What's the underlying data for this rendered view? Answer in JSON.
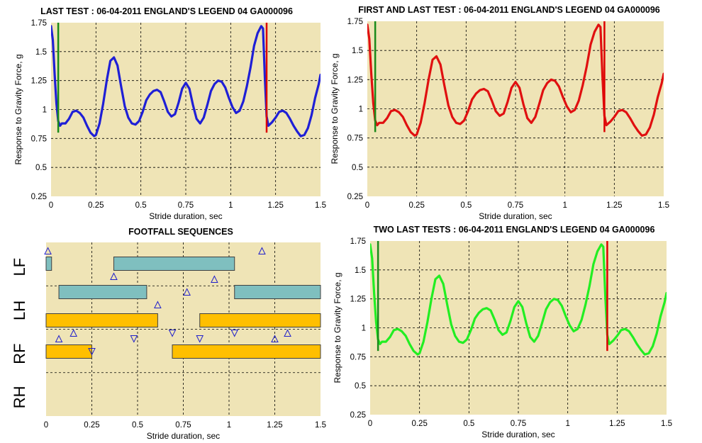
{
  "colors": {
    "plot_bg": "#efe4b6",
    "grid": "#000000"
  },
  "chart_data": [
    {
      "id": "p1",
      "type": "line",
      "title": "LAST TEST : 06-04-2011 ENGLAND'S LEGEND 04 GA000096",
      "xlabel": "Stride duration, sec",
      "ylabel": "Response to Gravity Force, g",
      "xlim": [
        0,
        1.5
      ],
      "ylim": [
        0.25,
        1.75
      ],
      "xticks": [
        0,
        0.25,
        0.5,
        0.75,
        1,
        1.25,
        1.5
      ],
      "xtick_labels": [
        "0",
        "0.25",
        "0.5",
        "0.75",
        "1",
        "1.25",
        "1.5"
      ],
      "yticks": [
        0.25,
        0.5,
        0.75,
        1,
        1.25,
        1.5,
        1.75
      ],
      "ytick_labels": [
        "0.25",
        "0.5",
        "0.75",
        "1",
        "1.25",
        "1.5",
        "1.75"
      ],
      "grid": true,
      "series": [
        {
          "color": "#1f1fd6",
          "x": [
            0,
            0.01,
            0.02,
            0.03,
            0.04,
            0.05,
            0.06,
            0.08,
            0.1,
            0.12,
            0.14,
            0.16,
            0.18,
            0.2,
            0.22,
            0.24,
            0.25,
            0.27,
            0.29,
            0.31,
            0.33,
            0.35,
            0.37,
            0.39,
            0.41,
            0.43,
            0.45,
            0.47,
            0.49,
            0.51,
            0.53,
            0.55,
            0.57,
            0.59,
            0.61,
            0.63,
            0.65,
            0.67,
            0.69,
            0.71,
            0.73,
            0.75,
            0.77,
            0.79,
            0.81,
            0.83,
            0.85,
            0.87,
            0.89,
            0.91,
            0.93,
            0.95,
            0.97,
            0.99,
            1.01,
            1.03,
            1.05,
            1.07,
            1.09,
            1.11,
            1.13,
            1.15,
            1.17,
            1.18,
            1.19,
            1.2,
            1.21,
            1.23,
            1.25,
            1.27,
            1.29,
            1.31,
            1.33,
            1.35,
            1.37,
            1.39,
            1.41,
            1.43,
            1.45,
            1.47,
            1.49,
            1.5
          ],
          "y": [
            1.72,
            1.6,
            1.3,
            1.05,
            0.9,
            0.86,
            0.88,
            0.88,
            0.92,
            0.98,
            0.99,
            0.97,
            0.93,
            0.86,
            0.8,
            0.77,
            0.78,
            0.88,
            1.05,
            1.25,
            1.42,
            1.45,
            1.38,
            1.2,
            1.03,
            0.93,
            0.88,
            0.87,
            0.9,
            0.98,
            1.08,
            1.13,
            1.16,
            1.17,
            1.15,
            1.07,
            0.98,
            0.94,
            0.96,
            1.06,
            1.18,
            1.23,
            1.18,
            1.04,
            0.92,
            0.88,
            0.93,
            1.04,
            1.16,
            1.22,
            1.25,
            1.24,
            1.19,
            1.1,
            1.02,
            0.97,
            0.99,
            1.07,
            1.2,
            1.36,
            1.55,
            1.66,
            1.72,
            1.7,
            1.28,
            0.94,
            0.86,
            0.89,
            0.93,
            0.98,
            0.99,
            0.97,
            0.92,
            0.86,
            0.81,
            0.77,
            0.78,
            0.84,
            0.95,
            1.1,
            1.22,
            1.3
          ]
        }
      ],
      "markers": [
        {
          "x": 0.04,
          "y0": 0.8,
          "y1": 1.75,
          "color": "#1a8a1a"
        },
        {
          "x": 1.2,
          "y0": 0.8,
          "y1": 1.75,
          "color": "#dd0000"
        }
      ]
    },
    {
      "id": "p2",
      "type": "line",
      "title": "FIRST AND LAST TEST : 06-04-2011 ENGLAND'S LEGEND 04 GA000096",
      "xlabel": "Stride duration,  sec",
      "ylabel": "Response to Gravity Force, g",
      "xlim": [
        0,
        1.5
      ],
      "ylim": [
        0.25,
        1.75
      ],
      "xticks": [
        0,
        0.25,
        0.5,
        0.75,
        1,
        1.25,
        1.5
      ],
      "xtick_labels": [
        "0",
        "0.25",
        "0.5",
        "0.75",
        "1",
        "1.25",
        "1.5"
      ],
      "yticks": [
        0.25,
        0.5,
        0.75,
        1,
        1.25,
        1.5,
        1.75
      ],
      "ytick_labels": [
        "0.25",
        "0.5",
        "0.75",
        "1",
        "1.25",
        "1.5",
        "1.75"
      ],
      "grid": true,
      "series": [
        {
          "color": "#e01010",
          "x": [
            0,
            0.01,
            0.02,
            0.03,
            0.04,
            0.05,
            0.06,
            0.08,
            0.1,
            0.12,
            0.14,
            0.16,
            0.18,
            0.2,
            0.22,
            0.24,
            0.25,
            0.27,
            0.29,
            0.31,
            0.33,
            0.35,
            0.37,
            0.39,
            0.41,
            0.43,
            0.45,
            0.47,
            0.49,
            0.51,
            0.53,
            0.55,
            0.57,
            0.59,
            0.61,
            0.63,
            0.65,
            0.67,
            0.69,
            0.71,
            0.73,
            0.75,
            0.77,
            0.79,
            0.81,
            0.83,
            0.85,
            0.87,
            0.89,
            0.91,
            0.93,
            0.95,
            0.97,
            0.99,
            1.01,
            1.03,
            1.05,
            1.07,
            1.09,
            1.11,
            1.13,
            1.15,
            1.17,
            1.18,
            1.19,
            1.2,
            1.21,
            1.23,
            1.25,
            1.27,
            1.29,
            1.31,
            1.33,
            1.35,
            1.37,
            1.39,
            1.41,
            1.43,
            1.45,
            1.47,
            1.49,
            1.5
          ],
          "y": [
            1.72,
            1.6,
            1.3,
            1.05,
            0.9,
            0.86,
            0.88,
            0.88,
            0.92,
            0.98,
            0.99,
            0.97,
            0.93,
            0.86,
            0.8,
            0.77,
            0.78,
            0.88,
            1.05,
            1.25,
            1.42,
            1.45,
            1.38,
            1.2,
            1.03,
            0.93,
            0.88,
            0.87,
            0.9,
            0.98,
            1.08,
            1.13,
            1.16,
            1.17,
            1.15,
            1.07,
            0.98,
            0.94,
            0.96,
            1.06,
            1.18,
            1.23,
            1.18,
            1.04,
            0.92,
            0.88,
            0.93,
            1.04,
            1.16,
            1.22,
            1.25,
            1.24,
            1.19,
            1.1,
            1.02,
            0.97,
            0.99,
            1.07,
            1.2,
            1.36,
            1.55,
            1.66,
            1.72,
            1.7,
            1.28,
            0.94,
            0.86,
            0.89,
            0.93,
            0.98,
            0.99,
            0.97,
            0.92,
            0.86,
            0.81,
            0.77,
            0.78,
            0.84,
            0.95,
            1.1,
            1.22,
            1.3
          ]
        }
      ],
      "markers": [
        {
          "x": 0.04,
          "y0": 0.8,
          "y1": 1.75,
          "color": "#1a8a1a"
        },
        {
          "x": 1.2,
          "y0": 0.8,
          "y1": 1.75,
          "color": "#dd0000"
        }
      ]
    },
    {
      "id": "p3",
      "type": "line",
      "title": "TWO LAST TESTS : 06-04-2011 ENGLAND'S LEGEND 04 GA000096",
      "xlabel": "Stride duration,  sec",
      "ylabel": "Response to Gravity Force, g",
      "xlim": [
        0,
        1.5
      ],
      "ylim": [
        0.25,
        1.75
      ],
      "xticks": [
        0,
        0.25,
        0.5,
        0.75,
        1,
        1.25,
        1.5
      ],
      "xtick_labels": [
        "0",
        "0.25",
        "0.5",
        "0.75",
        "1",
        "1.25",
        "1.5"
      ],
      "yticks": [
        0.25,
        0.5,
        0.75,
        1,
        1.25,
        1.5,
        1.75
      ],
      "ytick_labels": [
        "0.25",
        "0.5",
        "0.75",
        "1",
        "1.25",
        "1.5",
        "1.75"
      ],
      "grid": true,
      "series": [
        {
          "color": "#22ee22",
          "x": [
            0,
            0.01,
            0.02,
            0.03,
            0.04,
            0.05,
            0.06,
            0.08,
            0.1,
            0.12,
            0.14,
            0.16,
            0.18,
            0.2,
            0.22,
            0.24,
            0.25,
            0.27,
            0.29,
            0.31,
            0.33,
            0.35,
            0.37,
            0.39,
            0.41,
            0.43,
            0.45,
            0.47,
            0.49,
            0.51,
            0.53,
            0.55,
            0.57,
            0.59,
            0.61,
            0.63,
            0.65,
            0.67,
            0.69,
            0.71,
            0.73,
            0.75,
            0.77,
            0.79,
            0.81,
            0.83,
            0.85,
            0.87,
            0.89,
            0.91,
            0.93,
            0.95,
            0.97,
            0.99,
            1.01,
            1.03,
            1.05,
            1.07,
            1.09,
            1.11,
            1.13,
            1.15,
            1.17,
            1.18,
            1.19,
            1.2,
            1.21,
            1.23,
            1.25,
            1.27,
            1.29,
            1.31,
            1.33,
            1.35,
            1.37,
            1.39,
            1.41,
            1.43,
            1.45,
            1.47,
            1.49,
            1.5
          ],
          "y": [
            1.72,
            1.6,
            1.3,
            1.05,
            0.9,
            0.86,
            0.88,
            0.88,
            0.92,
            0.98,
            0.99,
            0.97,
            0.93,
            0.86,
            0.8,
            0.77,
            0.78,
            0.88,
            1.05,
            1.25,
            1.42,
            1.45,
            1.38,
            1.2,
            1.03,
            0.93,
            0.88,
            0.87,
            0.9,
            0.98,
            1.08,
            1.13,
            1.16,
            1.17,
            1.15,
            1.07,
            0.98,
            0.94,
            0.96,
            1.06,
            1.18,
            1.23,
            1.18,
            1.04,
            0.92,
            0.88,
            0.93,
            1.04,
            1.16,
            1.22,
            1.25,
            1.24,
            1.19,
            1.1,
            1.02,
            0.97,
            0.99,
            1.07,
            1.2,
            1.36,
            1.55,
            1.66,
            1.72,
            1.7,
            1.28,
            0.94,
            0.86,
            0.89,
            0.93,
            0.98,
            0.99,
            0.97,
            0.92,
            0.86,
            0.81,
            0.77,
            0.78,
            0.84,
            0.95,
            1.1,
            1.22,
            1.3
          ]
        }
      ],
      "markers": [
        {
          "x": 0.04,
          "y0": 0.8,
          "y1": 1.75,
          "color": "#1a8a1a"
        },
        {
          "x": 1.2,
          "y0": 0.8,
          "y1": 1.75,
          "color": "#dd0000"
        }
      ]
    },
    {
      "id": "p4",
      "type": "gantt",
      "title": "FOOTFALL SEQUENCES",
      "xlabel": "Stride duration,  sec",
      "xlim": [
        0,
        1.5
      ],
      "xticks": [
        0,
        0.25,
        0.5,
        0.75,
        1,
        1.25,
        1.5
      ],
      "xtick_labels": [
        "0",
        "0.25",
        "0.5",
        "0.75",
        "1",
        "1.25",
        "1.5"
      ],
      "grid": true,
      "rows": [
        "LF",
        "LH",
        "RF",
        "RH"
      ],
      "row_colors": [
        "#7fbfbf",
        "#7fbfbf",
        "#ffbf00",
        "#ffbf00"
      ],
      "bars": [
        {
          "row": 0,
          "start": 0,
          "end": 0.03
        },
        {
          "row": 0,
          "start": 0.37,
          "end": 1.03
        },
        {
          "row": 1,
          "start": 0.07,
          "end": 0.55
        },
        {
          "row": 1,
          "start": 1.03,
          "end": 1.5
        },
        {
          "row": 2,
          "start": 0,
          "end": 0.61
        },
        {
          "row": 2,
          "start": 0.84,
          "end": 1.5
        },
        {
          "row": 3,
          "start": 0,
          "end": 0.25
        },
        {
          "row": 3,
          "start": 0.69,
          "end": 1.5
        }
      ],
      "triangles": [
        {
          "x": 0.01,
          "row": 0,
          "dir": "up",
          "pos": "above"
        },
        {
          "x": 1.18,
          "row": 0,
          "dir": "up",
          "pos": "above"
        },
        {
          "x": 0.37,
          "row": 0,
          "dir": "up",
          "pos": "below"
        },
        {
          "x": 0.61,
          "row": 1,
          "dir": "up",
          "pos": "below"
        },
        {
          "x": 0.77,
          "row": 1,
          "dir": "up",
          "pos": "mid"
        },
        {
          "x": 0.92,
          "row": 1,
          "dir": "up",
          "pos": "above"
        },
        {
          "x": 0.15,
          "row": 2,
          "dir": "up",
          "pos": "below"
        },
        {
          "x": 1.32,
          "row": 2,
          "dir": "up",
          "pos": "below"
        },
        {
          "x": 0.69,
          "row": 2,
          "dir": "down",
          "pos": "below"
        },
        {
          "x": 1.03,
          "row": 2,
          "dir": "down",
          "pos": "below"
        },
        {
          "x": 0.48,
          "row": 3,
          "dir": "down",
          "pos": "above"
        },
        {
          "x": 0.84,
          "row": 3,
          "dir": "down",
          "pos": "above"
        },
        {
          "x": 0.07,
          "row": 3,
          "dir": "up",
          "pos": "above"
        },
        {
          "x": 1.25,
          "row": 3,
          "dir": "up",
          "pos": "above"
        },
        {
          "x": 0.25,
          "row": 3,
          "dir": "down",
          "pos": "mid"
        }
      ]
    }
  ]
}
